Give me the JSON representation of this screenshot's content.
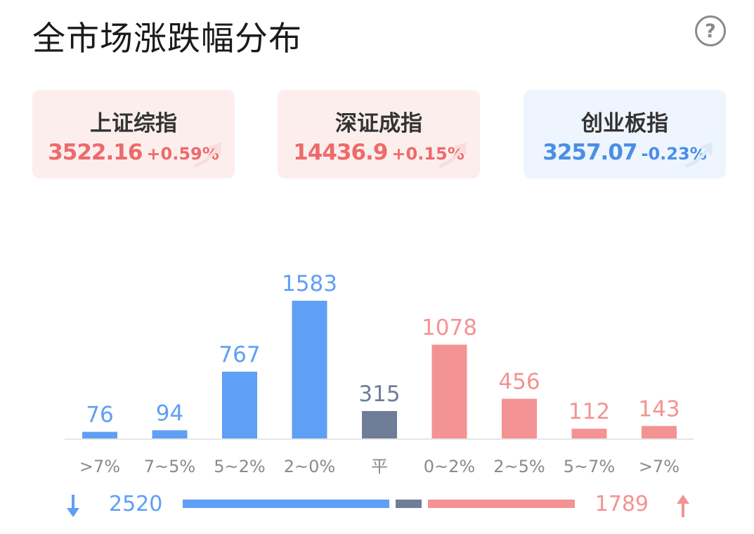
{
  "title": "全市场涨跌幅分布",
  "help_label": "?",
  "colors": {
    "down": "#5f9ff5",
    "flat": "#6f7d99",
    "up": "#f39393"
  },
  "indices": [
    {
      "name": "上证综指",
      "value": "3522.16",
      "change": "+0.59%",
      "trend": "up"
    },
    {
      "name": "深证成指",
      "value": "14436.9",
      "change": "+0.15%",
      "trend": "up"
    },
    {
      "name": "创业板指",
      "value": "3257.07",
      "change": "-0.23%",
      "trend": "down"
    }
  ],
  "chart_data": {
    "type": "bar",
    "categories": [
      ">7%",
      "7~5%",
      "5~2%",
      "2~0%",
      "平",
      "0~2%",
      "2~5%",
      "5~7%",
      ">7%"
    ],
    "values": [
      76,
      94,
      767,
      1583,
      315,
      1078,
      456,
      112,
      143
    ],
    "bar_groups": [
      "down",
      "down",
      "down",
      "down",
      "flat",
      "up",
      "up",
      "up",
      "up"
    ],
    "title": "",
    "xlabel": "",
    "ylabel": "",
    "ylim": [
      0,
      1583
    ],
    "grid": false
  },
  "summary": {
    "down_count": "2520",
    "up_count": "1789",
    "flat_count": 315,
    "down_icon": "arrow-down-icon",
    "up_icon": "arrow-up-icon"
  }
}
